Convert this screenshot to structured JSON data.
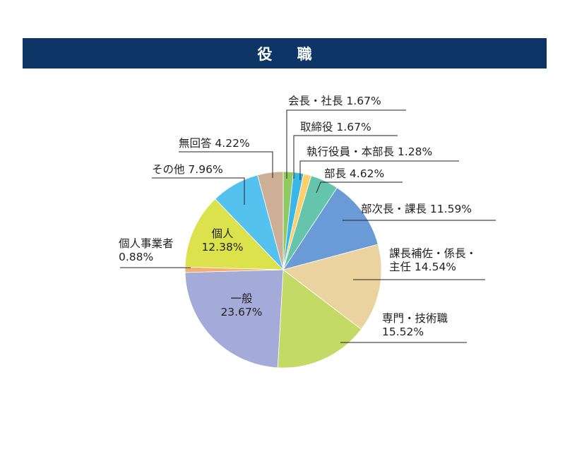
{
  "title": "役 職",
  "chart_data": {
    "type": "pie",
    "title": "役 職",
    "slices": [
      {
        "label": "会長・社長",
        "value": 1.67,
        "value_text": "1.67%",
        "color": "#8fcb62"
      },
      {
        "label": "取締役",
        "value": 1.67,
        "value_text": "1.67%",
        "color": "#3bb6e8"
      },
      {
        "label": "執行役員・本部長",
        "value": 1.28,
        "value_text": "1.28%",
        "color": "#fcd16b"
      },
      {
        "label": "部長",
        "value": 4.62,
        "value_text": "4.62%",
        "color": "#65c4ac"
      },
      {
        "label": "部次長・課長",
        "value": 11.59,
        "value_text": "11.59%",
        "color": "#6a9bd6"
      },
      {
        "label": "課長補佐・係長・主任",
        "value": 14.54,
        "value_text": "14.54%",
        "color": "#ead39e"
      },
      {
        "label": "専門・技術職",
        "value": 15.52,
        "value_text": "15.52%",
        "color": "#c3db64"
      },
      {
        "label": "一般",
        "value": 23.67,
        "value_text": "23.67%",
        "color": "#a5abd8"
      },
      {
        "label": "個人事業者",
        "value": 0.88,
        "value_text": "0.88%",
        "color": "#f4ae6f"
      },
      {
        "label": "個人",
        "value": 12.38,
        "value_text": "12.38%",
        "color": "#dce24c"
      },
      {
        "label": "その他",
        "value": 7.96,
        "value_text": "7.96%",
        "color": "#54c1ee"
      },
      {
        "label": "無回答",
        "value": 4.22,
        "value_text": "4.22%",
        "color": "#cfae96"
      }
    ],
    "label_text": [
      [
        "会長・社長 1.67%"
      ],
      [
        "取締役 1.67%"
      ],
      [
        "執行役員・本部長 1.28%"
      ],
      [
        "部長 4.62%"
      ],
      [
        "部次長・課長 11.59%"
      ],
      [
        "課長補佐・係長・",
        "主任 14.54%"
      ],
      [
        "専門・技術職",
        "15.52%"
      ],
      [
        "一般",
        "23.67%"
      ],
      [
        "個人事業者",
        "0.88%"
      ],
      [
        "個人",
        "12.38%"
      ],
      [
        "その他 7.96%"
      ],
      [
        "無回答 4.22%"
      ]
    ]
  }
}
